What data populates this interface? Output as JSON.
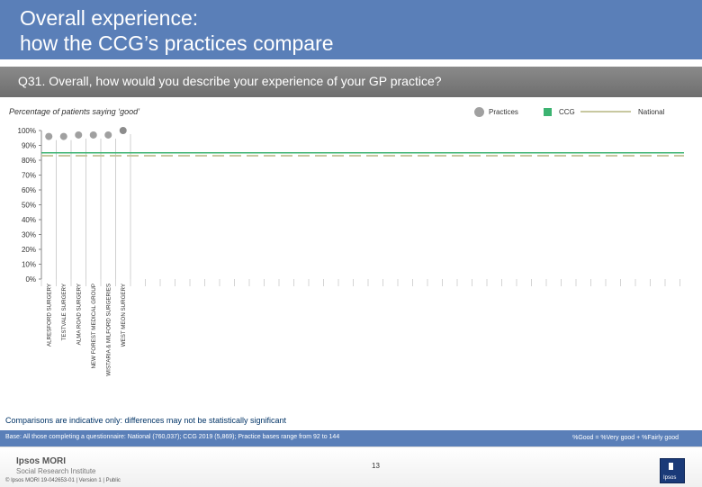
{
  "header": {
    "title": "Overall experience:\nhow the CCG’s practices compare"
  },
  "question": "Q31. Overall, how would you describe your experience of your GP practice?",
  "subtitle": "Percentage of patients saying ‘good’",
  "legend": {
    "practices": "Practices",
    "ccg": "CCG",
    "national": "National"
  },
  "note": "Comparisons are indicative only: differences may not be statistically significant",
  "base_text": "Base: All those completing a questionnaire: National (760,037); CCG 2019 (5,869); Practice bases range from 92 to 144",
  "good_definition": "%Good = %Very good + %Fairly good",
  "footer": {
    "logo_line1": "Ipsos MORI",
    "logo_line2": "Social Research Institute",
    "copyright": "© Ipsos MORI     19-042653-01 | Version 1 | Public",
    "page_number": "13",
    "brand_mark": "Ipsos"
  },
  "colors": {
    "header": "#5a7fb8",
    "practice_dot": "#a0a0a0",
    "highlight_dot": "#8c8c8c",
    "ccg": "#3cb371",
    "national": "#c8c8a0",
    "note": "#003366"
  },
  "chart_data": {
    "type": "scatter",
    "categories": [
      "ALRESFORD SURGERY",
      "TESTVALE SURGERY",
      "ALMA ROAD SURGERY",
      "NEW FOREST MEDICAL GROUP",
      "WISTARIA & MILFORD SURGERIES",
      "WEST MEON SURGERY"
    ],
    "values": [
      96,
      96,
      97,
      97,
      97,
      100
    ],
    "highlight_index": 5,
    "ccg_value": 85,
    "national_value": 83,
    "ylim": [
      0,
      100
    ],
    "yticks": [
      "0%",
      "10%",
      "20%",
      "30%",
      "40%",
      "50%",
      "60%",
      "70%",
      "80%",
      "90%",
      "100%"
    ],
    "grid": false,
    "legend_position": "top-right"
  }
}
